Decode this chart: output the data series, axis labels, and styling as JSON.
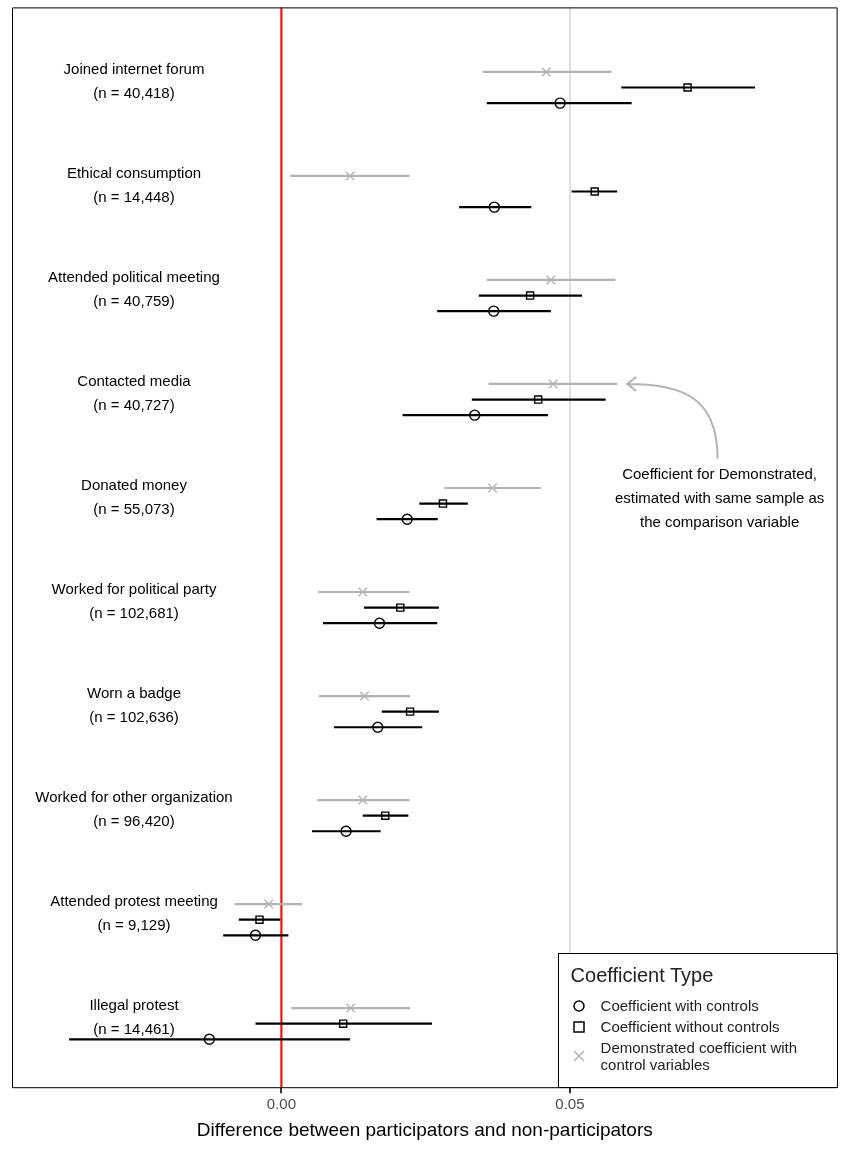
{
  "chart_data": {
    "type": "scatter",
    "orientation": "horizontal",
    "categories": [
      "Joined internet forum\n(n = 40,418)",
      "Ethical consumption\n(n = 14,448)",
      "Attended political meeting\n(n = 40,759)",
      "Contacted media\n(n = 40,727)",
      "Donated money\n(n = 55,073)",
      "Worked for political party\n(n = 102,681)",
      "Worn a badge\n(n = 102,636)",
      "Worked for other organization\n(n = 96,420)",
      "Attended protest meeting\n(n = 9,129)",
      "Illegal protest\n(n = 14,461)"
    ],
    "xlabel": "Difference between participators and non-participators",
    "xlim": [
      -0.0467,
      0.0964
    ],
    "xticks": [
      {
        "value": 0,
        "label": "0.00"
      },
      {
        "value": 0.05,
        "label": "0.05"
      }
    ],
    "grid": "x",
    "legend": "bottom right",
    "legend_title": "Coefficient Type",
    "ref_lines": [
      {
        "axis": "x",
        "value": 0,
        "color": "#ff0000"
      }
    ],
    "annotations": [
      "Coefficient for Demonstrated, estimated with same sample as the comparison variable"
    ],
    "series": [
      {
        "name": "Coefficient with controls",
        "color": "#000000",
        "marker": "circle",
        "values": [
          0.0483,
          0.0369,
          0.0368,
          0.0335,
          0.0218,
          0.017,
          0.0167,
          0.0112,
          -0.0045,
          -0.0125
        ],
        "errors": [
          [
            0.0356,
            0.0607
          ],
          [
            0.0308,
            0.0433
          ],
          [
            0.027,
            0.0467
          ],
          [
            0.021,
            0.0462
          ],
          [
            0.0165,
            0.0271
          ],
          [
            0.0072,
            0.027
          ],
          [
            0.0091,
            0.0244
          ],
          [
            0.0053,
            0.0172
          ],
          [
            -0.0101,
            0.0012
          ],
          [
            -0.0368,
            0.0119
          ]
        ]
      },
      {
        "name": "Coefficient without controls",
        "color": "#000000",
        "marker": "square",
        "values": [
          0.0704,
          0.0543,
          0.0431,
          0.0445,
          0.028,
          0.0206,
          0.0223,
          0.018,
          -0.0038,
          0.0107
        ],
        "errors": [
          [
            0.0589,
            0.0821
          ],
          [
            0.0503,
            0.0582
          ],
          [
            0.0342,
            0.0521
          ],
          [
            0.033,
            0.0562
          ],
          [
            0.0239,
            0.0323
          ],
          [
            0.0143,
            0.0273
          ],
          [
            0.0174,
            0.0273
          ],
          [
            0.0141,
            0.022
          ],
          [
            -0.0074,
            -0.0002
          ],
          [
            -0.0045,
            0.0261
          ]
        ]
      },
      {
        "name": "Demonstrated coefficient with control variables",
        "color": "#b3b3b3",
        "marker": "cross",
        "values": [
          0.0459,
          0.0119,
          0.0467,
          0.0471,
          0.0366,
          0.0141,
          0.0144,
          0.0141,
          -0.0022,
          0.012
        ],
        "errors": [
          [
            0.0349,
            0.0572
          ],
          [
            0.0015,
            0.0222
          ],
          [
            0.0356,
            0.0579
          ],
          [
            0.0359,
            0.0582
          ],
          [
            0.0282,
            0.045
          ],
          [
            0.0064,
            0.0222
          ],
          [
            0.0065,
            0.0223
          ],
          [
            0.0062,
            0.0222
          ],
          [
            -0.0081,
            0.0036
          ],
          [
            0.0017,
            0.0223
          ]
        ]
      }
    ]
  }
}
